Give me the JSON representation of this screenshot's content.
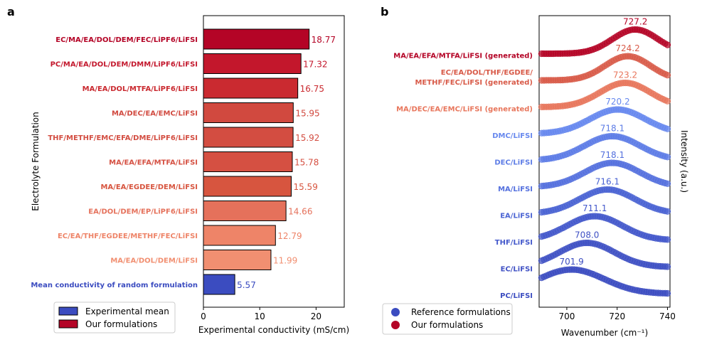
{
  "panel_a": {
    "label": "a",
    "chart_data": {
      "type": "bar",
      "orientation": "horizontal",
      "categories": [
        "EC/MA/EA/DOL/DEM/FEC/LiPF6/LiFSI",
        "PC/MA/EA/DOL/DEM/DMM/LiPF6/LiFSI",
        "MA/EA/DOL/MTFA/LiPF6/LiFSI",
        "MA/DEC/EA/EMC/LiFSI",
        "THF/METHF/EMC/EFA/DME/LiPF6/LiFSI",
        "MA/EA/EFA/MTFA/LiFSI",
        "MA/EA/EGDEE/DEM/LiFSI",
        "EA/DOL/DEM/EP/LiPF6/LiFSI",
        "EC/EA/THF/EGDEE/METHF/FEC/LiFSI",
        "MA/EA/DOL/DEM/LiFSI",
        "Mean conductivity of random formulation"
      ],
      "values": [
        18.77,
        17.32,
        16.75,
        15.95,
        15.92,
        15.78,
        15.59,
        14.66,
        12.79,
        11.99,
        5.57
      ],
      "value_labels": [
        "18.77",
        "17.32",
        "16.75",
        "15.95",
        "15.92",
        "15.78",
        "15.59",
        "14.66",
        "12.79",
        "11.99",
        "5.57"
      ],
      "colors": [
        "#b40426",
        "#c3172c",
        "#ca2a30",
        "#d1493f",
        "#d34d41",
        "#d55042",
        "#d7553f",
        "#e5715b",
        "#ee8468",
        "#f18f71",
        "#3b4cc0"
      ],
      "xlabel": "Experimental conductivity (mS/cm)",
      "ylabel": "Electrolyte Formulation",
      "xlim": [
        0,
        25
      ],
      "xticks": [
        "0",
        "10",
        "20"
      ],
      "legend": {
        "position": "bottom-left",
        "items": [
          {
            "label": "Experimental mean",
            "color": "#3b4cc0"
          },
          {
            "label": "Our formulations",
            "color": "#b40426"
          }
        ]
      }
    }
  },
  "panel_b": {
    "label": "b",
    "chart_data": {
      "type": "scatter",
      "xlabel": "Wavenumber (cm⁻¹)",
      "ylabel": "Intensity (a.u.)",
      "xlim": [
        689,
        741
      ],
      "xticks": [
        "700",
        "720",
        "740"
      ],
      "series": [
        {
          "name": "PC/LiFSI",
          "peak": 701.9,
          "peak_label": "701.9",
          "color": "#3b4cc0",
          "sigma": 13
        },
        {
          "name": "EC/LiFSI",
          "peak": 708.0,
          "peak_label": "708.0",
          "color": "#3f50c4",
          "sigma": 11
        },
        {
          "name": "THF/LiFSI",
          "peak": 711.1,
          "peak_label": "711.1",
          "color": "#4358cb",
          "sigma": 11
        },
        {
          "name": "EA/LiFSI",
          "peak": 716.1,
          "peak_label": "716.1",
          "color": "#4a63d3",
          "sigma": 11
        },
        {
          "name": "MA/LiFSI",
          "peak": 718.1,
          "peak_label": "718.1",
          "color": "#5470de",
          "sigma": 11
        },
        {
          "name": "DEC/LiFSI",
          "peak": 718.1,
          "peak_label": "718.1",
          "color": "#5d7ce6",
          "sigma": 11
        },
        {
          "name": "DMC/LiFSI",
          "peak": 720.2,
          "peak_label": "720.2",
          "color": "#6788ee",
          "sigma": 11
        },
        {
          "name": "MA/DEC/EA/EMC/LiFSI (generated)",
          "peak": 723.2,
          "peak_label": "723.2",
          "color": "#e8765c",
          "sigma": 10
        },
        {
          "name": "EC/EA/DOL/THF/EGDEE/ METHF/FEC/LiFSI (generated)",
          "peak": 724.2,
          "peak_label": "724.2",
          "color": "#d85a48",
          "sigma": 9
        },
        {
          "name": "MA/EA/EFA/MTFA/LiFSI (generated)",
          "peak": 727.2,
          "peak_label": "727.2",
          "color": "#b40426",
          "sigma": 9
        }
      ],
      "legend": {
        "position": "bottom-left",
        "items": [
          {
            "label": "Reference formulations",
            "color": "#3b4cc0"
          },
          {
            "label": "Our formulations",
            "color": "#b40426"
          }
        ]
      }
    }
  }
}
